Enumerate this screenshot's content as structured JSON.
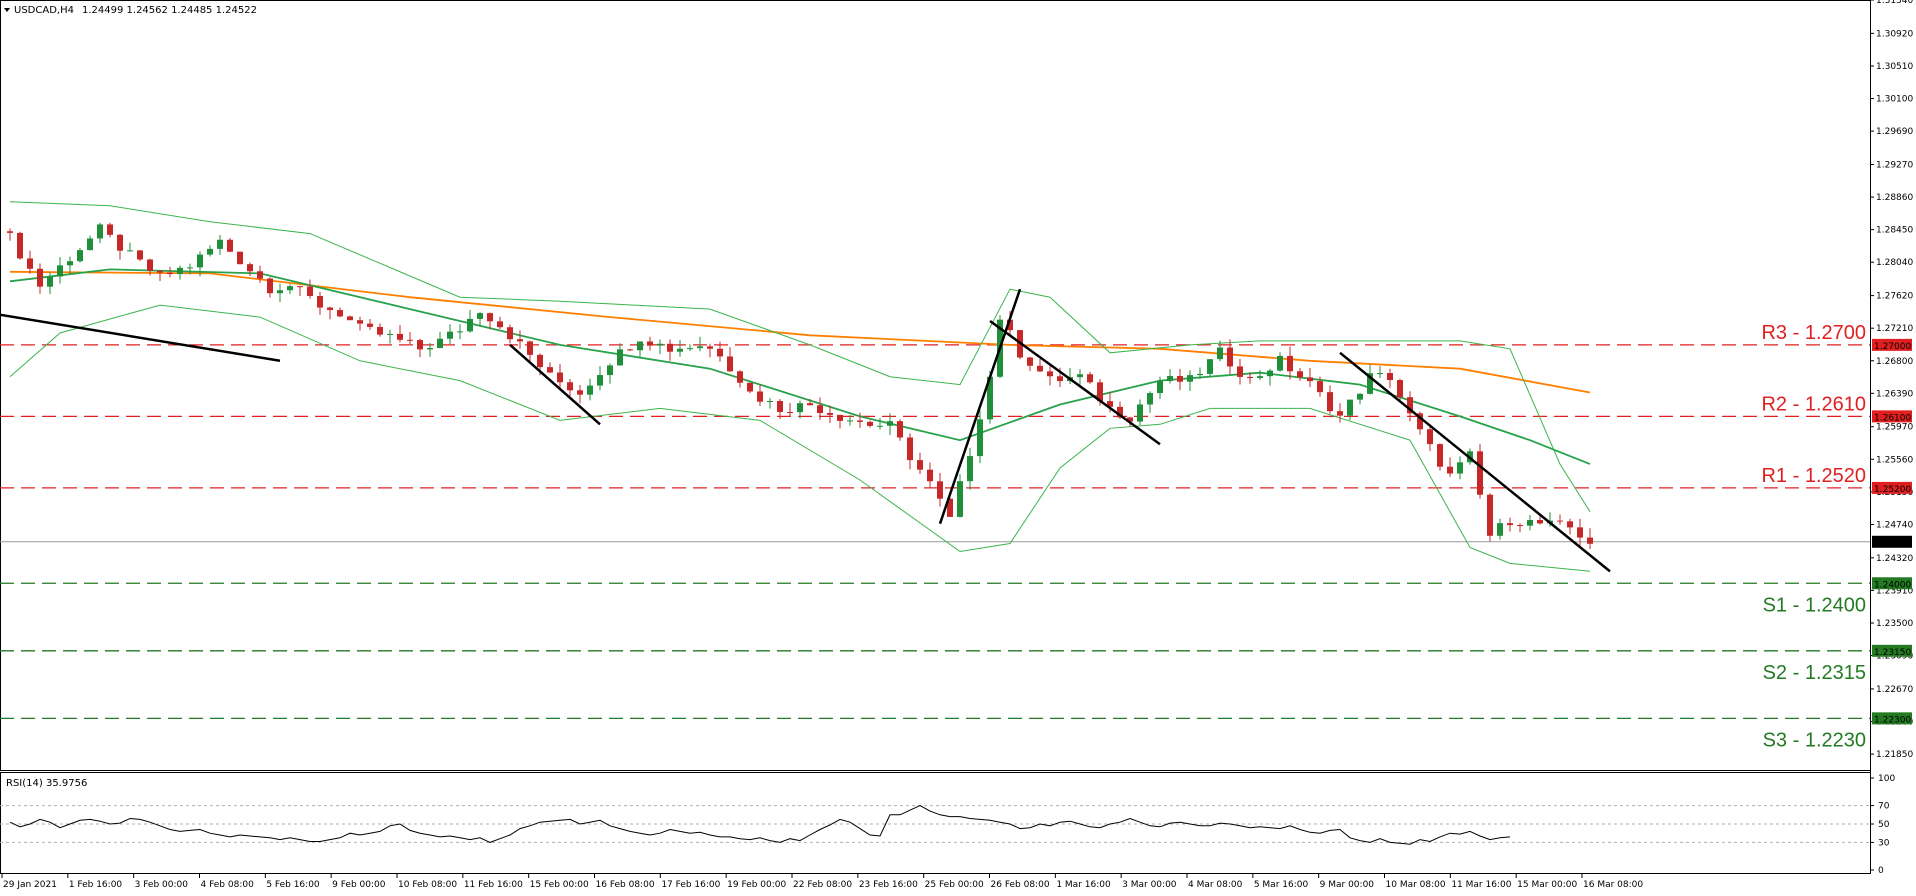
{
  "header": {
    "symbol": "USDCAD,H4",
    "ohlc": "1.24499 1.24562 1.24485 1.24522"
  },
  "rsi_header": "RSI(14) 35.9756",
  "colors": {
    "bull": "#1f8f3a",
    "bear": "#c62828",
    "resistance": "#e02020",
    "support": "#237a23",
    "ma_slow": "#ff8000",
    "ma_fast": "#27a24a",
    "bands": "#3cb44b",
    "trend": "#000000",
    "rsi": "#000000"
  },
  "chart_data": [
    {
      "type": "candlestick",
      "title": "USDCAD,H4",
      "y_ticks": [
        "1.31340",
        "1.30920",
        "1.30510",
        "1.30100",
        "1.29690",
        "1.29270",
        "1.28860",
        "1.28450",
        "1.28040",
        "1.27620",
        "1.27210",
        "1.26800",
        "1.26390",
        "1.25970",
        "1.25560",
        "1.25150",
        "1.24740",
        "1.24320",
        "1.23910",
        "1.23500",
        "1.23090",
        "1.22670",
        "1.22260",
        "1.21850"
      ],
      "ylim": [
        1.2165,
        1.3134
      ],
      "x_ticks": [
        "29 Jan 2021",
        "1 Feb 16:00",
        "3 Feb 00:00",
        "4 Feb 08:00",
        "5 Feb 16:00",
        "9 Feb 00:00",
        "10 Feb 08:00",
        "11 Feb 16:00",
        "15 Feb 00:00",
        "16 Feb 08:00",
        "17 Feb 16:00",
        "19 Feb 00:00",
        "22 Feb 08:00",
        "23 Feb 16:00",
        "25 Feb 00:00",
        "26 Feb 08:00",
        "1 Mar 16:00",
        "3 Mar 00:00",
        "4 Mar 08:00",
        "5 Mar 16:00",
        "9 Mar 00:00",
        "10 Mar 08:00",
        "11 Mar 16:00",
        "15 Mar 00:00",
        "16 Mar 08:00"
      ],
      "current_price": "1.24522",
      "levels": [
        {
          "name": "R3 - 1.2700",
          "value": 1.27,
          "tag": "1.27000",
          "kind": "resistance"
        },
        {
          "name": "R2 - 1.2610",
          "value": 1.261,
          "tag": "1.26100",
          "kind": "resistance"
        },
        {
          "name": "R1 - 1.2520",
          "value": 1.252,
          "tag": "1.25200",
          "kind": "resistance"
        },
        {
          "name": "S1 - 1.2400",
          "value": 1.24,
          "tag": "1.24000",
          "kind": "support"
        },
        {
          "name": "S2 - 1.2315",
          "value": 1.2315,
          "tag": "1.23150",
          "kind": "support"
        },
        {
          "name": "S3 - 1.2230",
          "value": 1.223,
          "tag": "1.22300",
          "kind": "support"
        }
      ],
      "close_path": [
        [
          0,
          1.2835
        ],
        [
          3,
          1.2775
        ],
        [
          6,
          1.281
        ],
        [
          9,
          1.2845
        ],
        [
          12,
          1.2812
        ],
        [
          15,
          1.2785
        ],
        [
          18,
          1.28
        ],
        [
          21,
          1.283
        ],
        [
          24,
          1.2795
        ],
        [
          26,
          1.2772
        ],
        [
          28,
          1.2775
        ],
        [
          31,
          1.275
        ],
        [
          33,
          1.274
        ],
        [
          35,
          1.272
        ],
        [
          38,
          1.271
        ],
        [
          41,
          1.2695
        ],
        [
          43,
          1.2705
        ],
        [
          45,
          1.272
        ],
        [
          47,
          1.2745
        ],
        [
          49,
          1.2725
        ],
        [
          51,
          1.27
        ],
        [
          54,
          1.266
        ],
        [
          57,
          1.264
        ],
        [
          60,
          1.268
        ],
        [
          63,
          1.271
        ],
        [
          66,
          1.2695
        ],
        [
          69,
          1.27
        ],
        [
          71,
          1.269
        ],
        [
          74,
          1.264
        ],
        [
          77,
          1.262
        ],
        [
          80,
          1.2625
        ],
        [
          83,
          1.261
        ],
        [
          86,
          1.26
        ],
        [
          88,
          1.2598
        ],
        [
          90,
          1.256
        ],
        [
          92,
          1.2525
        ],
        [
          94,
          1.248
        ],
        [
          96,
          1.2565
        ],
        [
          98,
          1.266
        ],
        [
          99,
          1.2735
        ],
        [
          101,
          1.269
        ],
        [
          104,
          1.2655
        ],
        [
          107,
          1.266
        ],
        [
          110,
          1.262
        ],
        [
          112,
          1.261
        ],
        [
          115,
          1.2655
        ],
        [
          118,
          1.2655
        ],
        [
          121,
          1.269
        ],
        [
          124,
          1.2655
        ],
        [
          127,
          1.268
        ],
        [
          130,
          1.265
        ],
        [
          133,
          1.261
        ],
        [
          136,
          1.266
        ],
        [
          138,
          1.266
        ],
        [
          140,
          1.261
        ],
        [
          142,
          1.257
        ],
        [
          144,
          1.2535
        ],
        [
          146,
          1.256
        ],
        [
          148,
          1.246
        ],
        [
          150,
          1.248
        ],
        [
          153,
          1.2475
        ],
        [
          156,
          1.247
        ],
        [
          158,
          1.2452
        ]
      ],
      "indicator_lines": [
        {
          "name": "MA slow",
          "color_key": "ma_slow",
          "points": [
            [
              0,
              1.2792
            ],
            [
              20,
              1.279
            ],
            [
              40,
              1.276
            ],
            [
              60,
              1.2735
            ],
            [
              80,
              1.2712
            ],
            [
              100,
              1.27
            ],
            [
              115,
              1.2695
            ],
            [
              130,
              1.268
            ],
            [
              145,
              1.267
            ],
            [
              158,
              1.264
            ]
          ]
        },
        {
          "name": "MA fast",
          "color_key": "ma_fast",
          "points": [
            [
              0,
              1.278
            ],
            [
              10,
              1.2795
            ],
            [
              25,
              1.279
            ],
            [
              40,
              1.2745
            ],
            [
              55,
              1.27
            ],
            [
              70,
              1.267
            ],
            [
              85,
              1.261
            ],
            [
              95,
              1.258
            ],
            [
              105,
              1.2625
            ],
            [
              115,
              1.2655
            ],
            [
              125,
              1.2665
            ],
            [
              135,
              1.265
            ],
            [
              145,
              1.261
            ],
            [
              152,
              1.258
            ],
            [
              158,
              1.255
            ]
          ]
        },
        {
          "name": "Upper band",
          "color_key": "bands",
          "points": [
            [
              0,
              1.288
            ],
            [
              10,
              1.2875
            ],
            [
              20,
              1.2855
            ],
            [
              30,
              1.284
            ],
            [
              45,
              1.276
            ],
            [
              55,
              1.2755
            ],
            [
              70,
              1.2745
            ],
            [
              80,
              1.27
            ],
            [
              88,
              1.266
            ],
            [
              95,
              1.265
            ],
            [
              100,
              1.277
            ],
            [
              104,
              1.276
            ],
            [
              110,
              1.269
            ],
            [
              118,
              1.27
            ],
            [
              125,
              1.2705
            ],
            [
              135,
              1.2705
            ],
            [
              145,
              1.2705
            ],
            [
              150,
              1.2695
            ],
            [
              155,
              1.255
            ],
            [
              158,
              1.249
            ]
          ]
        },
        {
          "name": "Lower band",
          "color_key": "bands",
          "points": [
            [
              0,
              1.266
            ],
            [
              5,
              1.2715
            ],
            [
              15,
              1.275
            ],
            [
              25,
              1.2735
            ],
            [
              35,
              1.268
            ],
            [
              45,
              1.2655
            ],
            [
              55,
              1.2605
            ],
            [
              65,
              1.262
            ],
            [
              75,
              1.2605
            ],
            [
              85,
              1.253
            ],
            [
              95,
              1.244
            ],
            [
              100,
              1.245
            ],
            [
              105,
              1.2545
            ],
            [
              110,
              1.2595
            ],
            [
              115,
              1.26
            ],
            [
              120,
              1.262
            ],
            [
              130,
              1.262
            ],
            [
              140,
              1.258
            ],
            [
              146,
              1.2445
            ],
            [
              150,
              1.2425
            ],
            [
              158,
              1.2415
            ]
          ]
        }
      ],
      "trend_lines": [
        [
          [
            -2,
            1.274
          ],
          [
            27,
            1.268
          ]
        ],
        [
          [
            50,
            1.27
          ],
          [
            59,
            1.26
          ]
        ],
        [
          [
            93,
            1.2475
          ],
          [
            101,
            1.277
          ]
        ],
        [
          [
            98,
            1.273
          ],
          [
            115,
            1.2575
          ]
        ],
        [
          [
            133,
            1.269
          ],
          [
            160,
            1.2415
          ]
        ]
      ]
    },
    {
      "type": "line",
      "title": "RSI(14) 35.9756",
      "y_ticks": [
        "100",
        "70",
        "50",
        "30",
        "0"
      ],
      "ylim": [
        0,
        100
      ],
      "guides": [
        70,
        50,
        30
      ],
      "values": [
        52,
        47,
        50,
        55,
        52,
        46,
        50,
        54,
        55,
        53,
        50,
        51,
        56,
        55,
        52,
        48,
        44,
        42,
        43,
        44,
        40,
        38,
        36,
        38,
        37,
        36,
        35,
        33,
        35,
        33,
        31,
        31,
        33,
        35,
        40,
        38,
        40,
        42,
        48,
        50,
        43,
        40,
        38,
        36,
        37,
        35,
        33,
        35,
        30,
        34,
        38,
        45,
        48,
        52,
        53,
        54,
        55,
        50,
        52,
        54,
        48,
        45,
        42,
        40,
        38,
        40,
        44,
        42,
        40,
        41,
        38,
        36,
        36,
        34,
        33,
        35,
        32,
        30,
        34,
        32,
        38,
        44,
        49,
        55,
        52,
        45,
        38,
        37,
        60,
        60,
        65,
        70,
        64,
        60,
        58,
        58,
        56,
        55,
        54,
        52,
        50,
        45,
        46,
        50,
        48,
        52,
        53,
        50,
        47,
        46,
        50,
        52,
        56,
        52,
        48,
        47,
        51,
        52,
        50,
        48,
        48,
        51,
        50,
        48,
        46,
        47,
        46,
        45,
        48,
        44,
        41,
        40,
        43,
        44,
        35,
        32,
        30,
        34,
        30,
        29,
        28,
        33,
        31,
        36,
        40,
        39,
        42,
        37,
        33,
        35,
        36
      ]
    }
  ]
}
